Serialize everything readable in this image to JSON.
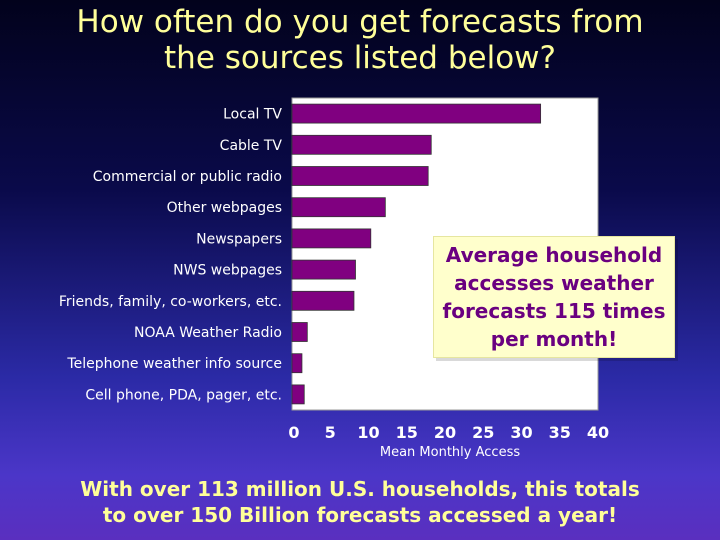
{
  "title_line1": "How often do you get forecasts from",
  "title_line2": "the sources listed below?",
  "callout": "Average household accesses weather forecasts 115 times per month!",
  "footer_line1": "With over 113 million U.S. households, this totals",
  "footer_line2": "to over 150 Billion forecasts accessed a year!",
  "colors": {
    "bar": "#800080",
    "plot_bg": "#ffffff",
    "title": "#ffff99",
    "callout_text": "#6a0080"
  },
  "chart_data": {
    "type": "bar",
    "orientation": "horizontal",
    "categories": [
      "Local TV",
      "Cable TV",
      "Commercial or public radio",
      "Other webpages",
      "Newspapers",
      "NWS webpages",
      "Friends, family, co-workers, etc.",
      "NOAA Weather Radio",
      "Telephone weather info source",
      "Cell phone, PDA, pager, etc."
    ],
    "values": [
      32.5,
      18.2,
      17.8,
      12.2,
      10.3,
      8.3,
      8.1,
      2.0,
      1.3,
      1.6
    ],
    "xlabel": "Mean Monthly Access",
    "xlim": [
      0,
      40
    ],
    "xticks": [
      0,
      5,
      10,
      15,
      20,
      25,
      30,
      35,
      40
    ],
    "grid": false
  }
}
